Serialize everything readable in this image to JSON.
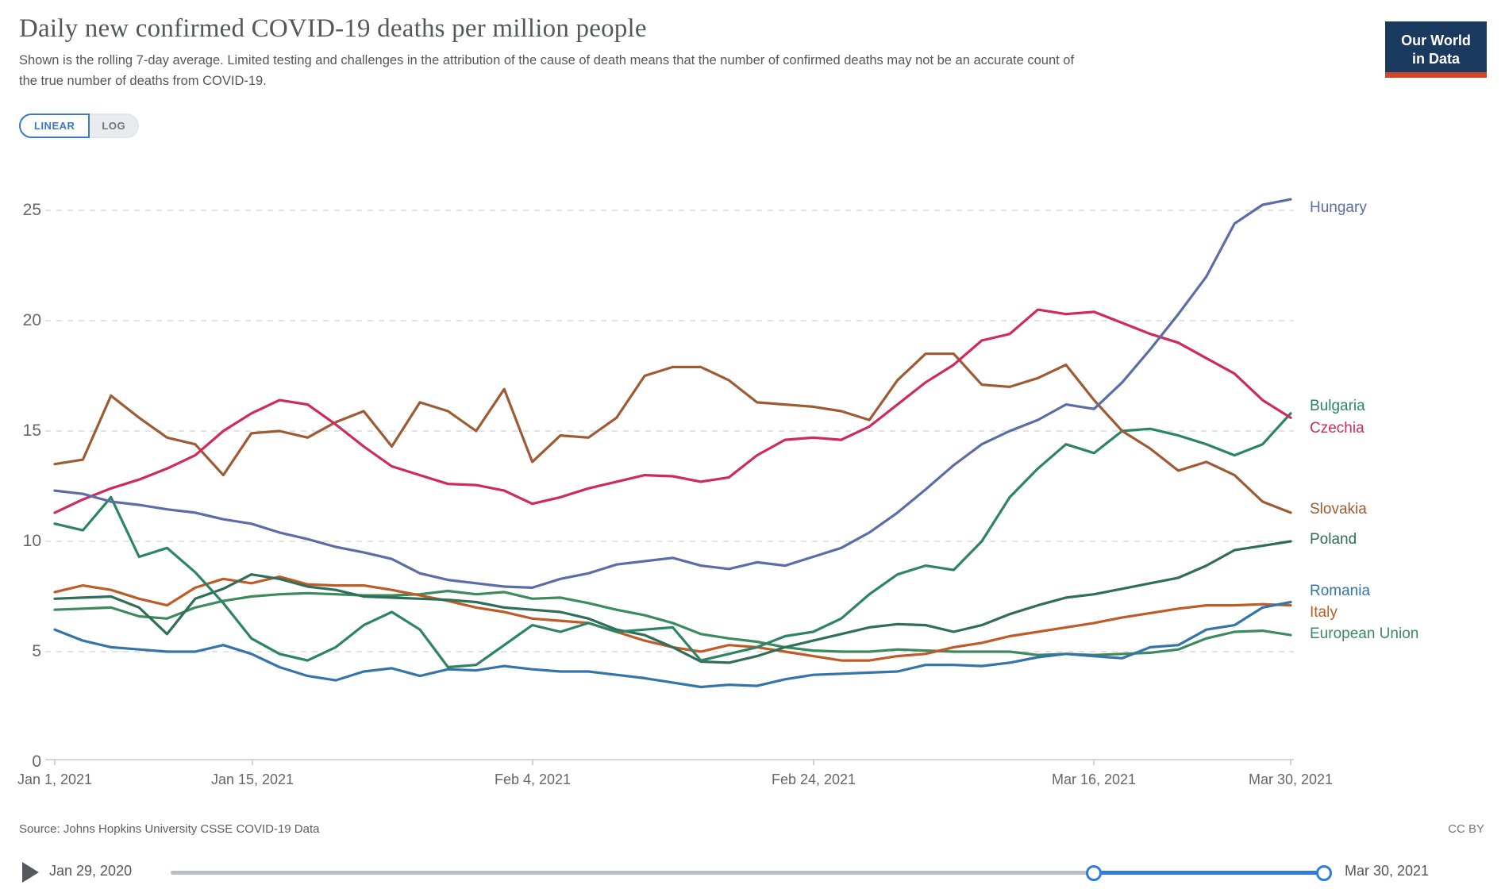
{
  "header": {
    "title": "Daily new confirmed COVID-19 deaths per million people",
    "subtitle": "Shown is the rolling 7-day average. Limited testing and challenges in the attribution of the cause of death means that the number of confirmed deaths may not be an accurate count of the true number of deaths from COVID-19.",
    "logo_line1": "Our World",
    "logo_line2": "in Data",
    "logo_bg": "#1b3a5f",
    "logo_stripe": "#d2492a"
  },
  "controls": {
    "linear_label": "LINEAR",
    "log_label": "LOG",
    "accent": "#3578c8"
  },
  "chart_data": {
    "type": "line",
    "title": "Daily new confirmed COVID-19 deaths per million people",
    "grid": "horizontal-dashed",
    "legend_position": "right-end-labels",
    "y_ticks": [
      0,
      5,
      10,
      15,
      20,
      25
    ],
    "ylim": [
      0,
      27
    ],
    "x_tick_labels": [
      "Jan 1, 2021",
      "Jan 15, 2021",
      "Feb 4, 2021",
      "Feb 24, 2021",
      "Mar 16, 2021",
      "Mar 30, 2021"
    ],
    "x_start_date": "Jan 1, 2021",
    "x_end_date": "Mar 30, 2021",
    "sample_interval_days": 2,
    "series": [
      {
        "name": "Hungary",
        "color": "#5b6da6",
        "values": [
          12.3,
          12.15,
          11.8,
          11.65,
          11.45,
          11.3,
          11.0,
          10.8,
          10.4,
          10.1,
          9.75,
          9.5,
          9.2,
          8.55,
          8.25,
          8.1,
          7.95,
          7.9,
          8.3,
          8.55,
          8.95,
          9.1,
          9.25,
          8.9,
          8.75,
          9.05,
          8.9,
          9.3,
          9.7,
          10.4,
          11.3,
          12.35,
          13.45,
          14.4,
          15.0,
          15.5,
          16.2,
          16.0,
          17.2,
          18.7,
          20.3,
          22.0,
          24.4,
          25.25,
          25.5
        ]
      },
      {
        "name": "Bulgaria",
        "color": "#2c8465",
        "values": [
          10.8,
          10.5,
          12.0,
          9.3,
          9.7,
          8.6,
          7.2,
          5.6,
          4.9,
          4.6,
          5.2,
          6.2,
          6.8,
          6.0,
          4.3,
          4.4,
          5.3,
          6.2,
          5.9,
          6.3,
          5.9,
          6.0,
          6.1,
          4.6,
          4.9,
          5.2,
          5.7,
          5.9,
          6.5,
          7.6,
          8.5,
          8.9,
          8.7,
          10.0,
          12.0,
          13.3,
          14.4,
          14.0,
          15.0,
          15.1,
          14.8,
          14.4,
          13.9,
          14.4,
          15.8
        ]
      },
      {
        "name": "Czechia",
        "color": "#ce2a5c",
        "values": [
          11.3,
          11.9,
          12.4,
          12.8,
          13.3,
          13.9,
          15.0,
          15.8,
          16.4,
          16.2,
          15.3,
          14.3,
          13.4,
          13.0,
          12.6,
          12.55,
          12.3,
          11.7,
          12.0,
          12.4,
          12.7,
          13.0,
          12.95,
          12.7,
          12.9,
          13.9,
          14.6,
          14.7,
          14.6,
          15.2,
          16.2,
          17.2,
          18.0,
          19.1,
          19.4,
          20.5,
          20.3,
          20.4,
          19.9,
          19.4,
          19.0,
          18.3,
          17.6,
          16.4,
          15.6
        ]
      },
      {
        "name": "Slovakia",
        "color": "#9c5b33",
        "values": [
          13.5,
          13.7,
          16.6,
          15.6,
          14.7,
          14.4,
          13.0,
          14.9,
          15.0,
          14.7,
          15.4,
          15.9,
          14.3,
          16.3,
          15.9,
          15.0,
          16.9,
          13.6,
          14.8,
          14.7,
          15.6,
          17.5,
          17.9,
          17.9,
          17.3,
          16.3,
          16.2,
          16.1,
          15.9,
          15.5,
          17.3,
          18.5,
          18.5,
          17.1,
          17.0,
          17.4,
          18.0,
          16.4,
          15.0,
          14.2,
          13.2,
          13.6,
          13.0,
          11.8,
          11.3
        ]
      },
      {
        "name": "Poland",
        "color": "#2f6e57",
        "values": [
          7.4,
          7.45,
          7.5,
          7.0,
          5.8,
          7.4,
          7.85,
          8.5,
          8.3,
          7.95,
          7.8,
          7.5,
          7.45,
          7.4,
          7.35,
          7.25,
          7.0,
          6.9,
          6.8,
          6.5,
          6.0,
          5.75,
          5.2,
          4.55,
          4.5,
          4.8,
          5.2,
          5.5,
          5.8,
          6.1,
          6.25,
          6.2,
          5.9,
          6.2,
          6.7,
          7.1,
          7.45,
          7.6,
          7.85,
          8.1,
          8.35,
          8.9,
          9.6,
          9.8,
          10.0
        ]
      },
      {
        "name": "Romania",
        "color": "#3474a9",
        "values": [
          6.0,
          5.5,
          5.2,
          5.1,
          5.0,
          5.0,
          5.3,
          4.9,
          4.3,
          3.9,
          3.7,
          4.1,
          4.25,
          3.9,
          4.2,
          4.15,
          4.35,
          4.2,
          4.1,
          4.1,
          3.95,
          3.8,
          3.6,
          3.4,
          3.5,
          3.45,
          3.75,
          3.95,
          4.0,
          4.05,
          4.1,
          4.4,
          4.4,
          4.35,
          4.5,
          4.75,
          4.9,
          4.8,
          4.7,
          5.2,
          5.3,
          6.0,
          6.2,
          7.0,
          7.25
        ]
      },
      {
        "name": "Italy",
        "color": "#be5b26",
        "values": [
          7.7,
          8.0,
          7.8,
          7.4,
          7.1,
          7.9,
          8.3,
          8.1,
          8.4,
          8.05,
          8.0,
          8.0,
          7.8,
          7.55,
          7.3,
          7.0,
          6.8,
          6.5,
          6.4,
          6.3,
          5.9,
          5.5,
          5.2,
          5.0,
          5.3,
          5.2,
          5.0,
          4.8,
          4.6,
          4.6,
          4.8,
          4.9,
          5.2,
          5.4,
          5.7,
          5.9,
          6.1,
          6.3,
          6.55,
          6.75,
          6.95,
          7.1,
          7.1,
          7.15,
          7.1
        ]
      },
      {
        "name": "European Union",
        "color": "#3c8a5e",
        "values": [
          6.9,
          6.95,
          7.0,
          6.6,
          6.5,
          7.0,
          7.3,
          7.5,
          7.6,
          7.65,
          7.6,
          7.55,
          7.55,
          7.6,
          7.75,
          7.6,
          7.7,
          7.4,
          7.45,
          7.2,
          6.9,
          6.65,
          6.3,
          5.8,
          5.6,
          5.45,
          5.2,
          5.05,
          5.0,
          5.0,
          5.1,
          5.05,
          5.0,
          5.0,
          5.0,
          4.85,
          4.9,
          4.85,
          4.9,
          4.95,
          5.1,
          5.6,
          5.9,
          5.95,
          5.75
        ]
      }
    ]
  },
  "footer": {
    "source": "Source: Johns Hopkins University CSSE COVID-19 Data",
    "license": "CC BY"
  },
  "timeline": {
    "start_label": "Jan 29, 2020",
    "end_label": "Mar 30, 2021"
  }
}
